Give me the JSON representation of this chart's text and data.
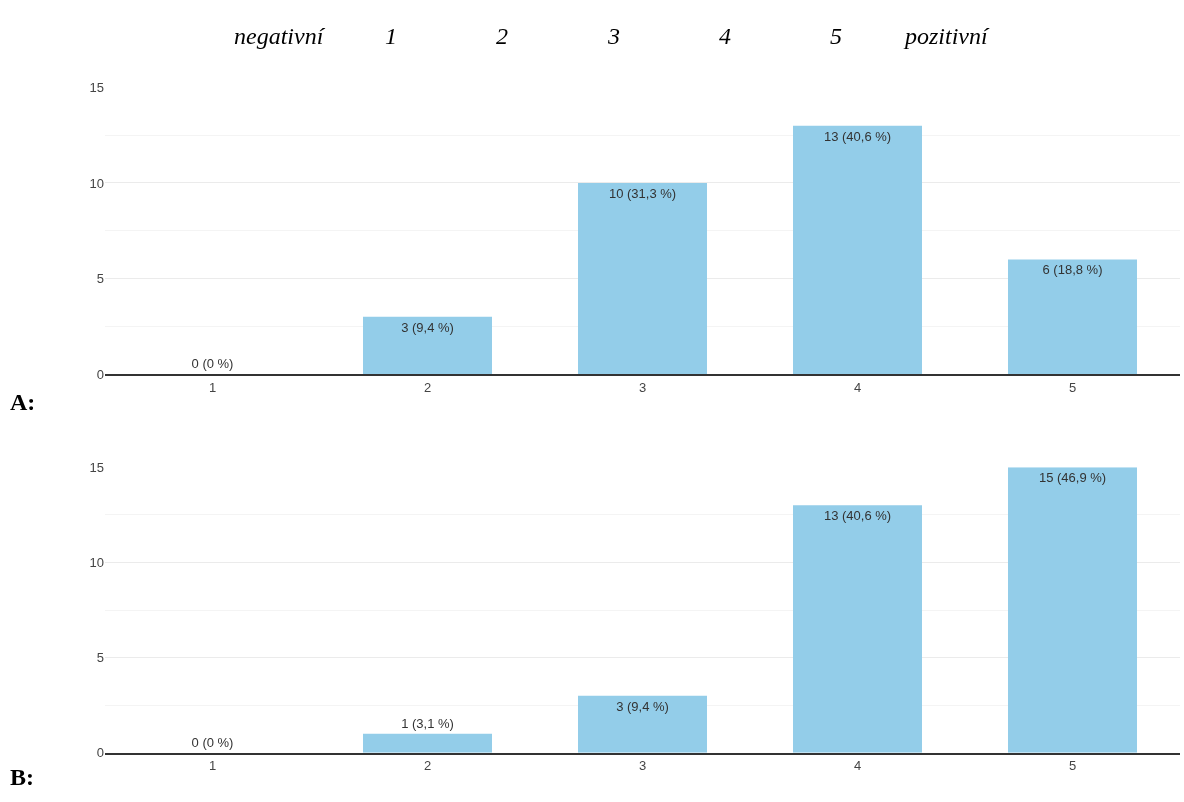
{
  "chart_data": [
    {
      "type": "bar",
      "title": "A:",
      "annotations": [
        "negativní",
        "1",
        "2",
        "3",
        "4",
        "5",
        "pozitivní"
      ],
      "categories": [
        "1",
        "2",
        "3",
        "4",
        "5"
      ],
      "values": [
        0,
        3,
        10,
        13,
        6
      ],
      "color": "#93cde9",
      "ylim": [
        0,
        15
      ],
      "yticks": [
        0,
        5,
        10,
        15
      ],
      "grid": "y",
      "value_labels": [
        "0 (0 %)",
        "3 (9,4 %)",
        "10 (31,3 %)",
        "13 (40,6 %)",
        "6 (18,8 %)"
      ]
    },
    {
      "type": "bar",
      "title": "B:",
      "categories": [
        "1",
        "2",
        "3",
        "4",
        "5"
      ],
      "values": [
        0,
        1,
        3,
        13,
        15
      ],
      "color": "#93cde9",
      "ylim": [
        0,
        15
      ],
      "yticks": [
        0,
        5,
        10,
        15
      ],
      "grid": "y",
      "value_labels": [
        "0 (0 %)",
        "1 (3,1 %)",
        "3 (9,4 %)",
        "13 (40,6 %)",
        "15 (46,9 %)"
      ]
    }
  ]
}
